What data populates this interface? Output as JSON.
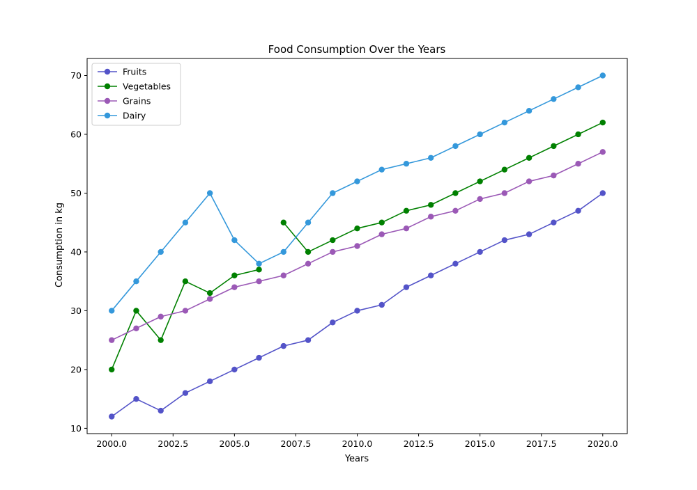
{
  "chart_data": {
    "type": "line",
    "title": "Food Consumption Over the Years",
    "xlabel": "Years",
    "ylabel": "Consumption in kg",
    "x": [
      2000,
      2001,
      2002,
      2003,
      2004,
      2005,
      2006,
      2007,
      2008,
      2009,
      2010,
      2011,
      2012,
      2013,
      2014,
      2015,
      2016,
      2017,
      2018,
      2019,
      2020
    ],
    "xlim": [
      1999,
      2021
    ],
    "ylim": [
      9.1,
      72.9
    ],
    "x_ticks": [
      2000.0,
      2002.5,
      2005.0,
      2007.5,
      2010.0,
      2012.5,
      2015.0,
      2017.5,
      2020.0
    ],
    "x_tick_labels": [
      "2000.0",
      "2002.5",
      "2005.0",
      "2007.5",
      "2010.0",
      "2012.5",
      "2015.0",
      "2017.5",
      "2020.0"
    ],
    "y_ticks": [
      10,
      20,
      30,
      40,
      50,
      60,
      70
    ],
    "y_tick_labels": [
      "10",
      "20",
      "30",
      "40",
      "50",
      "60",
      "70"
    ],
    "grid": false,
    "legend_position": "upper-left",
    "series": [
      {
        "name": "Fruits",
        "color": "#5353c8",
        "marker": "circle",
        "values": [
          12,
          15,
          13,
          16,
          18,
          20,
          22,
          24,
          25,
          28,
          30,
          31,
          34,
          36,
          38,
          40,
          42,
          43,
          45,
          47,
          50
        ]
      },
      {
        "name": "Vegetables",
        "color": "#008000",
        "marker": "circle",
        "values": [
          20,
          30,
          25,
          35,
          33,
          36,
          37,
          45,
          40,
          42,
          44,
          45,
          47,
          48,
          50,
          52,
          54,
          56,
          58,
          60,
          62
        ],
        "gap_after_index": 6
      },
      {
        "name": "Grains",
        "color": "#9b59b6",
        "marker": "circle",
        "values": [
          25,
          27,
          29,
          30,
          32,
          34,
          35,
          36,
          38,
          40,
          41,
          43,
          44,
          46,
          47,
          49,
          50,
          52,
          53,
          55,
          57
        ]
      },
      {
        "name": "Dairy",
        "color": "#3498db",
        "marker": "circle",
        "values": [
          30,
          35,
          40,
          45,
          50,
          42,
          38,
          40,
          45,
          50,
          52,
          54,
          55,
          56,
          58,
          60,
          62,
          64,
          66,
          68,
          70
        ]
      }
    ]
  }
}
